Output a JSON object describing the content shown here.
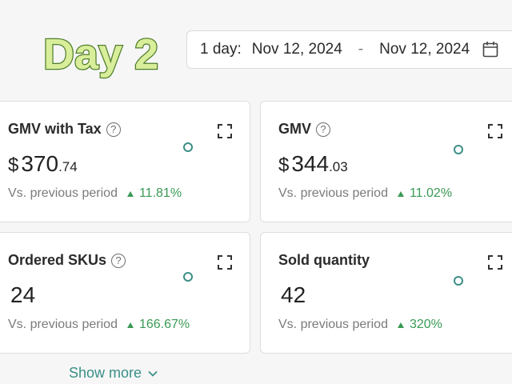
{
  "banner": {
    "day_label": "Day 2"
  },
  "date_range": {
    "label": "1 day:",
    "start": "Nov 12, 2024",
    "separator": "-",
    "end": "Nov 12, 2024",
    "icon": "calendar-icon"
  },
  "metrics": [
    {
      "title": "GMV with Tax",
      "has_help": true,
      "currency": "$",
      "value": "370",
      "cents": ".74",
      "compare_label": "Vs. previous period",
      "change": "11.81%",
      "direction": "up"
    },
    {
      "title": "GMV",
      "has_help": true,
      "currency": "$",
      "value": "344",
      "cents": ".03",
      "compare_label": "Vs. previous period",
      "change": "11.02%",
      "direction": "up"
    },
    {
      "title": "Ordered SKUs",
      "has_help": true,
      "currency": "",
      "value": "24",
      "cents": "",
      "compare_label": "Vs. previous period",
      "change": "166.67%",
      "direction": "up"
    },
    {
      "title": "Sold quantity",
      "has_help": false,
      "currency": "",
      "value": "42",
      "cents": "",
      "compare_label": "Vs. previous period",
      "change": "320%",
      "direction": "up"
    }
  ],
  "show_more": {
    "label": "Show more"
  },
  "colors": {
    "accent": "#3d8f86",
    "positive": "#3a9a55",
    "banner_fill": "#d9ee9a",
    "banner_stroke": "#4f7d2a"
  }
}
